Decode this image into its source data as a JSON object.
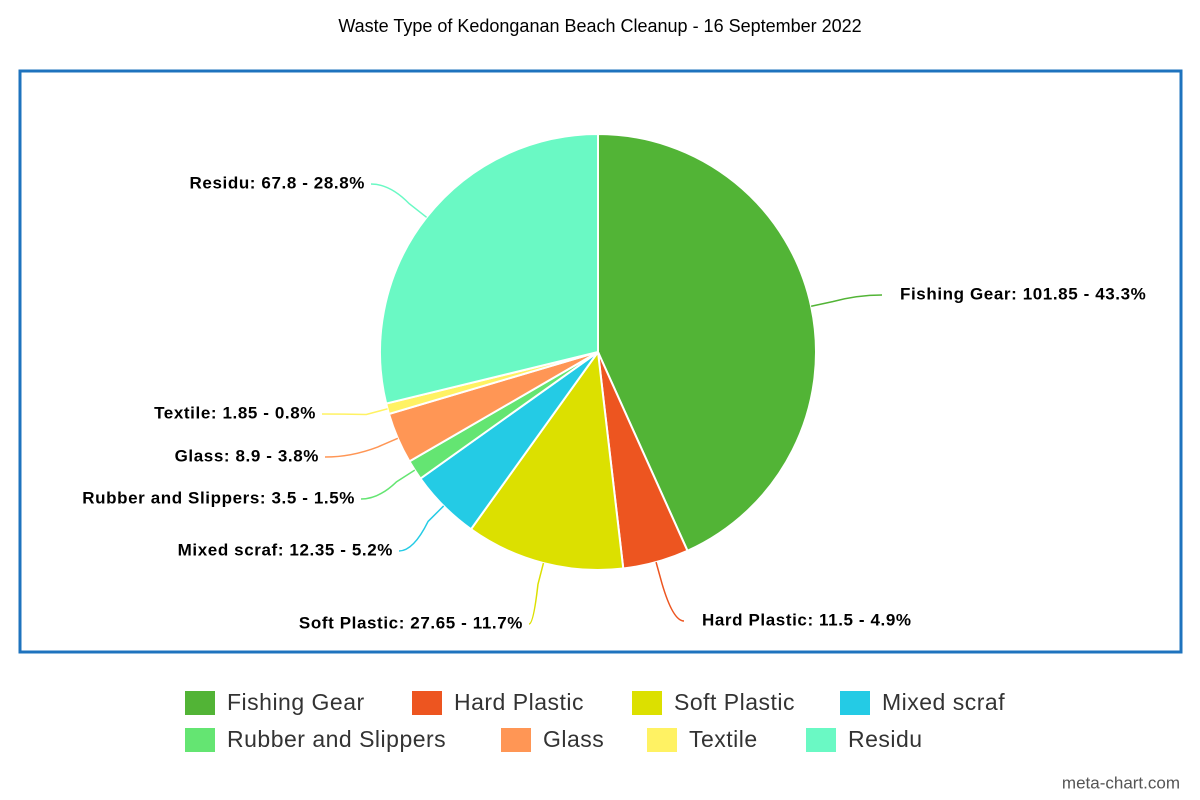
{
  "chart_data": {
    "type": "pie",
    "title": "Waste Type of Kedonganan Beach Cleanup - 16 September 2022",
    "categories": [
      "Fishing Gear",
      "Hard Plastic",
      "Soft Plastic",
      "Mixed scraf",
      "Rubber and Slippers",
      "Glass",
      "Textile",
      "Residu"
    ],
    "values": [
      101.85,
      11.5,
      27.65,
      12.35,
      3.5,
      8.9,
      1.85,
      67.8
    ],
    "value_labels": [
      "Fishing Gear: 101.85 - 43.3%",
      "Hard Plastic: 11.5 - 4.9%",
      "Soft Plastic: 27.65 - 11.7%",
      "Mixed scraf: 12.35 - 5.2%",
      "Rubber and Slippers: 3.5 - 1.5%",
      "Glass: 8.9 - 3.8%",
      "Textile: 1.85 - 0.8%",
      "Residu: 67.8 - 28.8%"
    ],
    "colors": [
      "#52b436",
      "#ed5520",
      "#dce000",
      "#24cbe5",
      "#64e572",
      "#ff9655",
      "#fff263",
      "#6af9c4"
    ],
    "credit": "meta-chart.com"
  }
}
